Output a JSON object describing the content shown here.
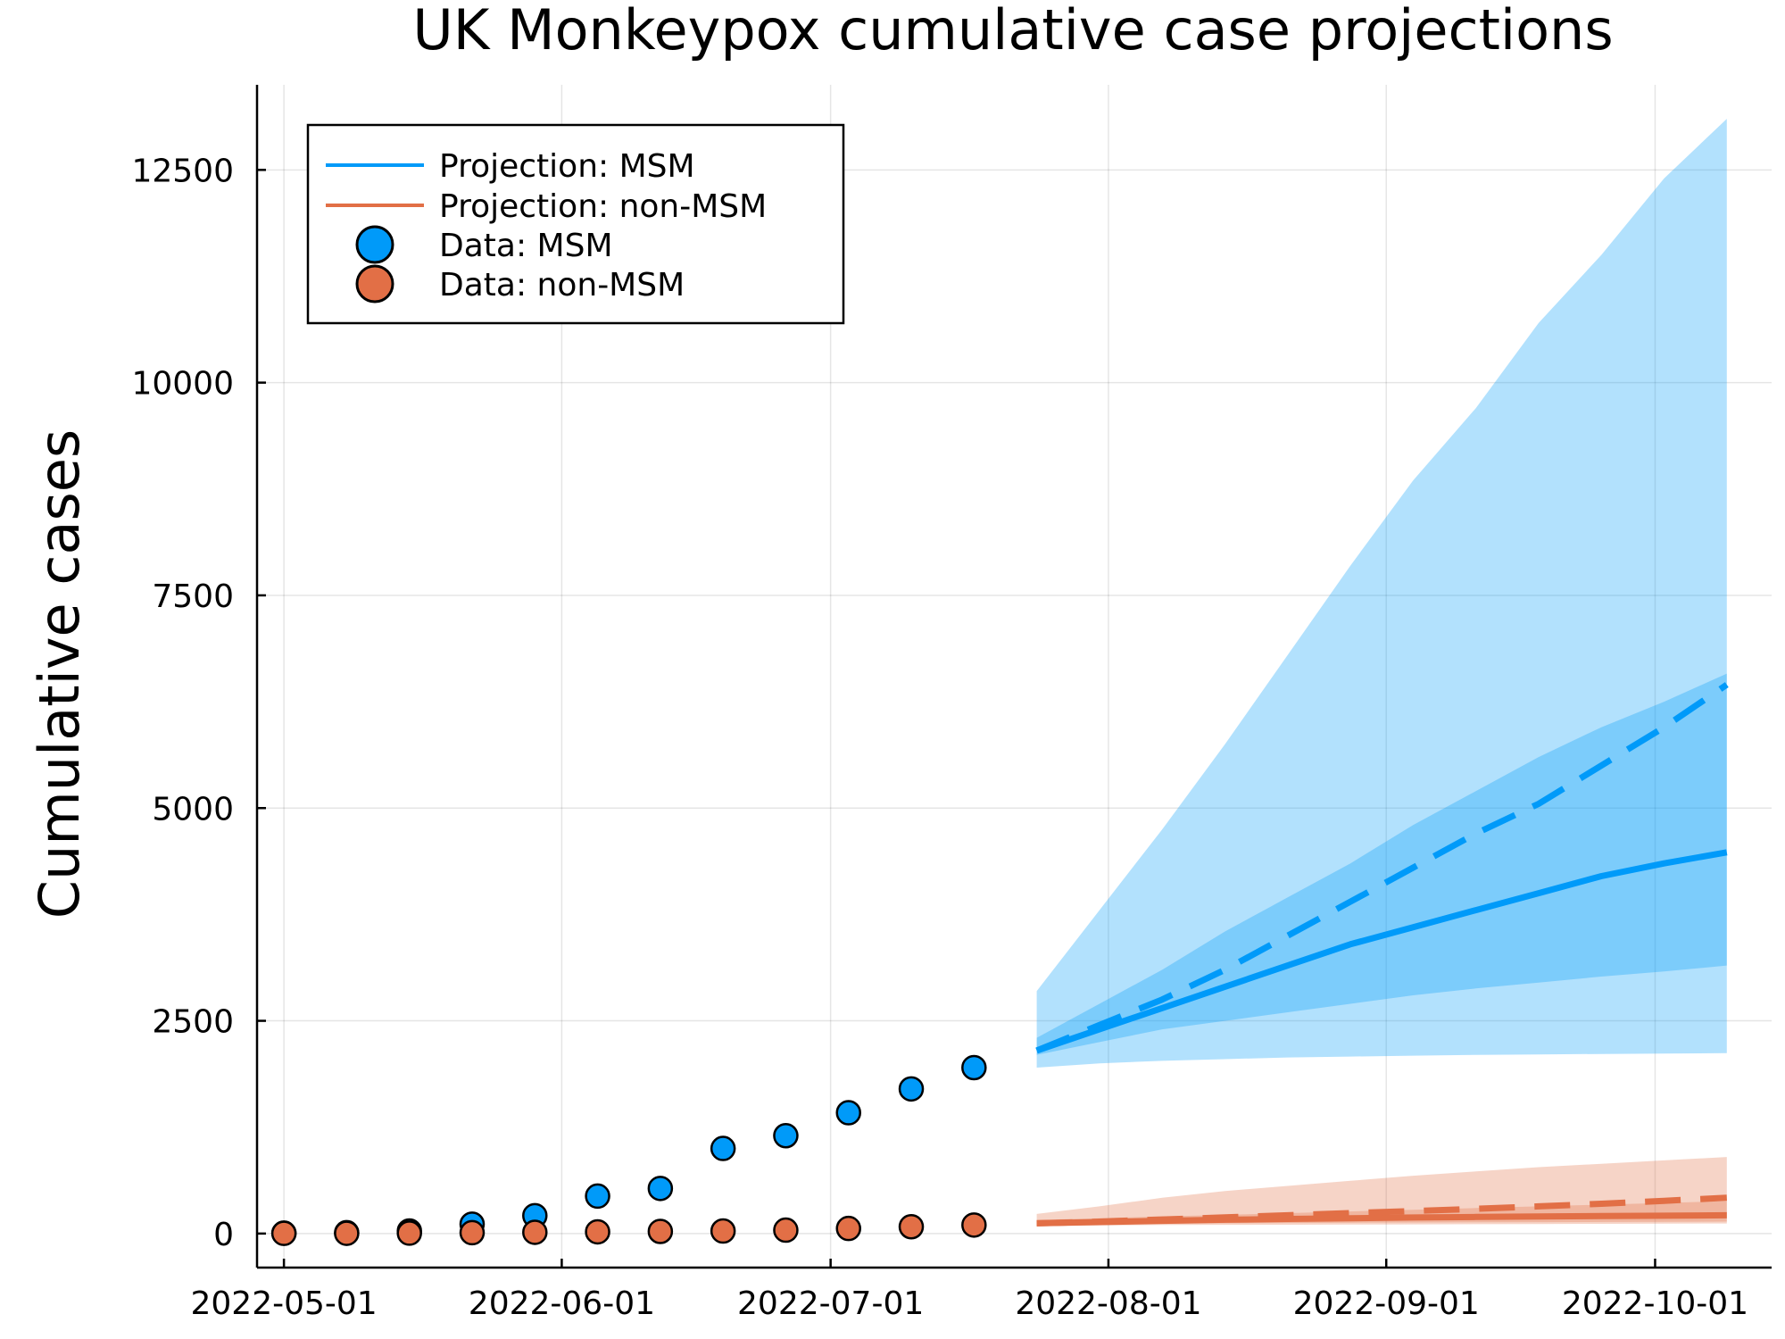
{
  "chart_data": {
    "type": "line",
    "title": "UK Monkeypox cumulative case projections",
    "xlabel": "",
    "ylabel": "Cumulative cases",
    "x_axis": "date",
    "xlim": [
      "2022-04-28",
      "2022-10-14"
    ],
    "ylim": [
      -400,
      13500
    ],
    "x_ticks": [
      "2022-05-01",
      "2022-06-01",
      "2022-07-01",
      "2022-08-01",
      "2022-09-01",
      "2022-10-01"
    ],
    "y_ticks": [
      0,
      2500,
      5000,
      7500,
      10000,
      12500
    ],
    "grid": true,
    "legend_position": "top-left",
    "colors": {
      "msm": "#009af9",
      "non_msm": "#e26f46"
    },
    "legend": [
      {
        "label": "Projection: MSM",
        "kind": "line",
        "color": "#009af9"
      },
      {
        "label": "Projection: non-MSM",
        "kind": "line",
        "color": "#e26f46"
      },
      {
        "label": "Data: MSM",
        "kind": "marker",
        "color": "#009af9"
      },
      {
        "label": "Data: non-MSM",
        "kind": "marker",
        "color": "#e26f46"
      }
    ],
    "data_x": [
      "2022-05-01",
      "2022-05-08",
      "2022-05-15",
      "2022-05-22",
      "2022-05-29",
      "2022-06-05",
      "2022-06-12",
      "2022-06-19",
      "2022-06-26",
      "2022-07-03",
      "2022-07-10",
      "2022-07-17"
    ],
    "data_msm": [
      5,
      10,
      30,
      110,
      210,
      440,
      530,
      1000,
      1150,
      1420,
      1700,
      1950
    ],
    "data_non_msm": [
      2,
      3,
      5,
      10,
      15,
      20,
      25,
      30,
      40,
      60,
      80,
      100
    ],
    "projection_x": [
      "2022-07-24",
      "2022-07-31",
      "2022-08-07",
      "2022-08-14",
      "2022-08-21",
      "2022-08-28",
      "2022-09-04",
      "2022-09-11",
      "2022-09-18",
      "2022-09-25",
      "2022-10-02",
      "2022-10-09"
    ],
    "projection_msm": {
      "median": [
        2150,
        2400,
        2650,
        2900,
        3150,
        3400,
        3600,
        3800,
        4000,
        4200,
        4350,
        4480
      ],
      "dashed": [
        2150,
        2450,
        2750,
        3100,
        3500,
        3900,
        4300,
        4700,
        5050,
        5500,
        5950,
        6450
      ],
      "inner_lower": [
        2100,
        2250,
        2400,
        2500,
        2600,
        2700,
        2800,
        2880,
        2950,
        3020,
        3080,
        3150
      ],
      "inner_upper": [
        2300,
        2700,
        3100,
        3550,
        3950,
        4350,
        4800,
        5200,
        5600,
        5950,
        6250,
        6580
      ],
      "outer_lower": [
        1950,
        2000,
        2030,
        2050,
        2070,
        2080,
        2090,
        2100,
        2105,
        2110,
        2115,
        2120
      ],
      "outer_upper": [
        2850,
        3800,
        4750,
        5750,
        6800,
        7850,
        8850,
        9700,
        10700,
        11500,
        12400,
        13100
      ]
    },
    "projection_non_msm": {
      "median": [
        120,
        135,
        150,
        162,
        172,
        180,
        188,
        195,
        200,
        205,
        210,
        215
      ],
      "dashed": [
        120,
        140,
        165,
        190,
        215,
        240,
        265,
        290,
        320,
        350,
        385,
        420
      ],
      "inner_lower": [
        100,
        110,
        115,
        120,
        125,
        128,
        130,
        132,
        134,
        136,
        138,
        140
      ],
      "inner_upper": [
        160,
        180,
        200,
        220,
        240,
        260,
        280,
        300,
        320,
        340,
        360,
        380
      ],
      "outer_lower": [
        90,
        95,
        100,
        102,
        104,
        106,
        108,
        110,
        112,
        114,
        116,
        118
      ],
      "outer_upper": [
        230,
        320,
        420,
        500,
        560,
        620,
        680,
        730,
        780,
        820,
        860,
        900
      ]
    }
  }
}
